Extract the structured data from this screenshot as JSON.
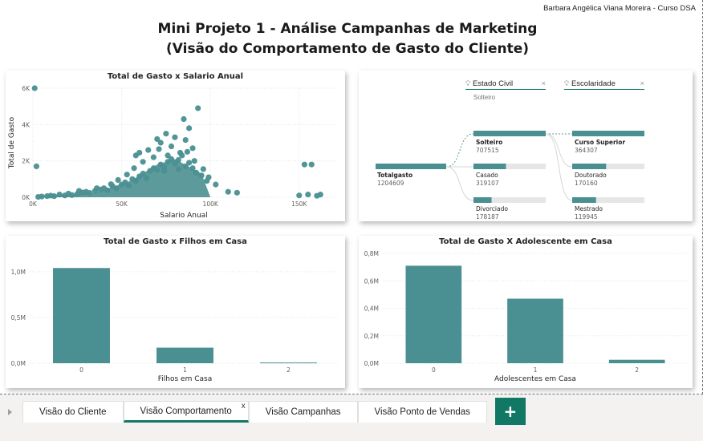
{
  "header": {
    "author": "Barbara Angélica Viana Moreira - Curso DSA",
    "title_line1": "Mini Projeto 1 - Análise Campanhas de Marketing",
    "title_line2": "(Visão do Comportamento de Gasto do Cliente)"
  },
  "colors": {
    "teal": "#4a8f91",
    "accent": "#117865",
    "grey": "#e6e6e6"
  },
  "scatter": {
    "title": "Total de Gasto x Salario Anual",
    "chart_data": {
      "type": "scatter",
      "title": "Total de Gasto x Salario Anual",
      "xlabel": "Salario Anual",
      "ylabel": "Total de Gasto",
      "xlim": [
        0,
        170000
      ],
      "ylim": [
        0,
        6000
      ],
      "x_ticks": [
        "0K",
        "50K",
        "100K",
        "150K"
      ],
      "y_ticks": [
        "0K",
        "2K",
        "4K",
        "6K"
      ],
      "points": [
        [
          1000,
          6000
        ],
        [
          2000,
          1700
        ],
        [
          3000,
          20
        ],
        [
          5000,
          40
        ],
        [
          8000,
          60
        ],
        [
          10000,
          90
        ],
        [
          12000,
          60
        ],
        [
          15000,
          150
        ],
        [
          18000,
          100
        ],
        [
          20000,
          200
        ],
        [
          22000,
          120
        ],
        [
          25000,
          180
        ],
        [
          28000,
          260
        ],
        [
          30000,
          300
        ],
        [
          32000,
          240
        ],
        [
          35000,
          350
        ],
        [
          38000,
          420
        ],
        [
          40000,
          500
        ],
        [
          42000,
          380
        ],
        [
          45000,
          600
        ],
        [
          47000,
          480
        ],
        [
          50000,
          700
        ],
        [
          52000,
          820
        ],
        [
          54000,
          650
        ],
        [
          56000,
          1000
        ],
        [
          58000,
          900
        ],
        [
          60000,
          1150
        ],
        [
          62000,
          1300
        ],
        [
          64000,
          1050
        ],
        [
          66000,
          1450
        ],
        [
          68000,
          1600
        ],
        [
          70000,
          1500
        ],
        [
          72000,
          1800
        ],
        [
          74000,
          1650
        ],
        [
          76000,
          1950
        ],
        [
          78000,
          2100
        ],
        [
          80000,
          1850
        ],
        [
          82000,
          2050
        ],
        [
          84000,
          2300
        ],
        [
          86000,
          1700
        ],
        [
          88000,
          1900
        ],
        [
          90000,
          1600
        ],
        [
          92000,
          1350
        ],
        [
          95000,
          1200
        ],
        [
          98000,
          900
        ],
        [
          60000,
          2450
        ],
        [
          65000,
          2600
        ],
        [
          70000,
          3200
        ],
        [
          75000,
          3500
        ],
        [
          72000,
          3000
        ],
        [
          78000,
          2800
        ],
        [
          80000,
          3300
        ],
        [
          85000,
          4300
        ],
        [
          88000,
          3800
        ],
        [
          90000,
          2700
        ],
        [
          93000,
          4900
        ],
        [
          86000,
          3150
        ],
        [
          83000,
          2450
        ],
        [
          76000,
          2300
        ],
        [
          68000,
          2200
        ],
        [
          62000,
          1950
        ],
        [
          57000,
          1600
        ],
        [
          53000,
          1250
        ],
        [
          48000,
          950
        ],
        [
          44000,
          720
        ],
        [
          36000,
          500
        ],
        [
          26000,
          350
        ],
        [
          58000,
          2300
        ],
        [
          71000,
          2650
        ],
        [
          74000,
          1450
        ],
        [
          82000,
          1550
        ],
        [
          87000,
          2500
        ],
        [
          91000,
          2000
        ],
        [
          96000,
          1550
        ],
        [
          99000,
          1100
        ],
        [
          103000,
          700
        ],
        [
          110000,
          300
        ],
        [
          153000,
          1800
        ],
        [
          157000,
          1800
        ],
        [
          150000,
          100
        ],
        [
          155000,
          150
        ],
        [
          160000,
          80
        ],
        [
          162000,
          150
        ],
        [
          115000,
          250
        ]
      ]
    }
  },
  "decomp": {
    "filter1": "Estado Civil",
    "filter1_value": "Solteiro",
    "filter2": "Escolaridade",
    "root": {
      "label": "Totalgasto",
      "value": "1204609"
    },
    "level1": [
      {
        "label": "Solteiro",
        "value": "707515",
        "frac": 1.0
      },
      {
        "label": "Casado",
        "value": "319107",
        "frac": 0.45
      },
      {
        "label": "Divorciado",
        "value": "178187",
        "frac": 0.25
      }
    ],
    "level2": [
      {
        "label": "Curso Superior",
        "value": "364307",
        "frac": 1.0
      },
      {
        "label": "Doutorado",
        "value": "170160",
        "frac": 0.47
      },
      {
        "label": "Mestrado",
        "value": "119945",
        "frac": 0.33
      }
    ]
  },
  "bar1": {
    "title": "Total de Gasto x Filhos em Casa",
    "chart_data": {
      "type": "bar",
      "title": "Total de Gasto x Filhos em Casa",
      "xlabel": "Filhos em Casa",
      "ylabel": "",
      "categories": [
        "0",
        "1",
        "2"
      ],
      "values": [
        1040000,
        170000,
        8000
      ],
      "ylim": [
        0,
        1200000
      ],
      "y_ticks": [
        {
          "v": 0,
          "label": "0,0M"
        },
        {
          "v": 500000,
          "label": "0,5M"
        },
        {
          "v": 1000000,
          "label": "1,0M"
        }
      ]
    }
  },
  "bar2": {
    "title": "Total de Gasto X Adolescente em Casa",
    "chart_data": {
      "type": "bar",
      "title": "Total de Gasto X Adolescente em Casa",
      "xlabel": "Adolescentes em Casa",
      "ylabel": "",
      "categories": [
        "0",
        "1",
        "2"
      ],
      "values": [
        710000,
        470000,
        25000
      ],
      "ylim": [
        0,
        800000
      ],
      "y_ticks": [
        {
          "v": 0,
          "label": "0,0M"
        },
        {
          "v": 200000,
          "label": "0,2M"
        },
        {
          "v": 400000,
          "label": "0,4M"
        },
        {
          "v": 600000,
          "label": "0,6M"
        },
        {
          "v": 800000,
          "label": "0,8M"
        }
      ]
    }
  },
  "tabs": [
    {
      "label": "Visão do Cliente",
      "active": false
    },
    {
      "label": "Visão Comportamento",
      "active": true
    },
    {
      "label": "Visão Campanhas",
      "active": false
    },
    {
      "label": "Visão Ponto de Vendas",
      "active": false
    }
  ],
  "tab_close": "x",
  "add_page_label": "+"
}
